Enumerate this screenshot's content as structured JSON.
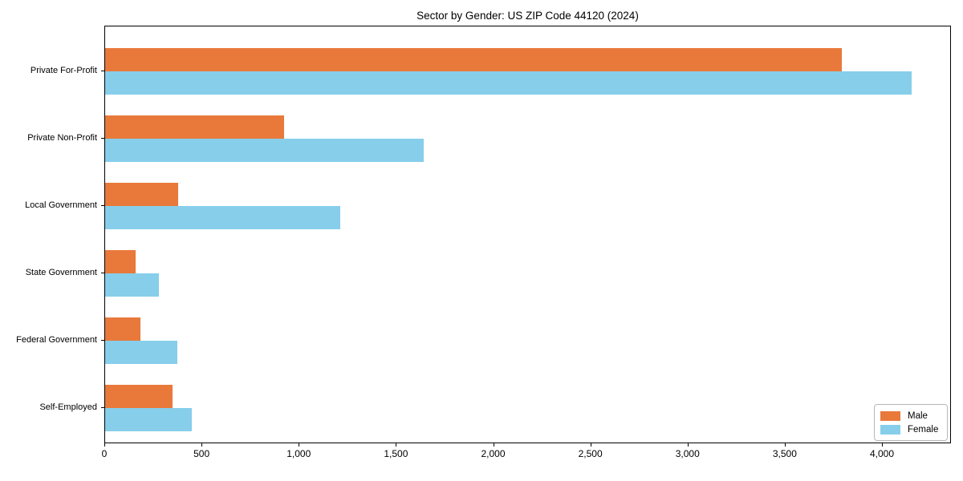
{
  "chart_data": {
    "type": "bar",
    "orientation": "horizontal",
    "title": "Sector by Gender: US ZIP Code 44120 (2024)",
    "categories": [
      "Private For-Profit",
      "Private Non-Profit",
      "Local Government",
      "State Government",
      "Federal Government",
      "Self-Employed"
    ],
    "series": [
      {
        "name": "Male",
        "color": "#E8793B",
        "values": [
          3790,
          920,
          375,
          155,
          180,
          345
        ]
      },
      {
        "name": "Female",
        "color": "#87CEEB",
        "values": [
          4150,
          1640,
          1210,
          275,
          370,
          445
        ]
      }
    ],
    "xlabel": "",
    "ylabel": "",
    "xlim": [
      0,
      4355
    ],
    "xticks": [
      0,
      500,
      1000,
      1500,
      2000,
      2500,
      3000,
      3500,
      4000
    ],
    "grid": false,
    "legend_position": "lower right",
    "background_color": "#ffffff",
    "axis_color": "#000000"
  }
}
